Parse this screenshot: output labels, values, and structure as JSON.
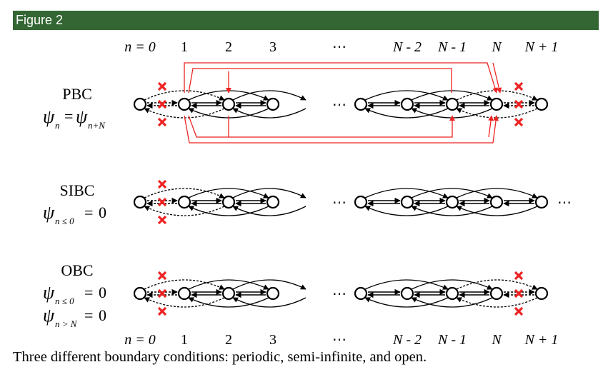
{
  "header": {
    "title": "Figure 2"
  },
  "index_labels": [
    "n = 0",
    "1",
    "2",
    "3",
    "⋯",
    "N - 2",
    "N - 1",
    "N",
    "N + 1"
  ],
  "ellipsis": "⋯",
  "rows": [
    {
      "id": "pbc",
      "name": "PBC",
      "conditions": [
        {
          "psi_sub": "n",
          "rel": "=",
          "rhs_psi_sub": "n+N",
          "rhs": ""
        }
      ]
    },
    {
      "id": "sibc",
      "name": "SIBC",
      "conditions": [
        {
          "psi_sub": "n ≤ 0",
          "rel": "=",
          "rhs": "0"
        }
      ]
    },
    {
      "id": "obc",
      "name": "OBC",
      "conditions": [
        {
          "psi_sub": "n ≤ 0",
          "rel": "=",
          "rhs": "0"
        },
        {
          "psi_sub": "n > N",
          "rel": "=",
          "rhs": "0"
        }
      ]
    }
  ],
  "caption": "Three different boundary conditions: periodic, semi-infinite, and open.",
  "colors": {
    "header_bg": "#336633",
    "cut": "#ee1111",
    "wrap": "#ee2222",
    "ink": "#000000"
  }
}
